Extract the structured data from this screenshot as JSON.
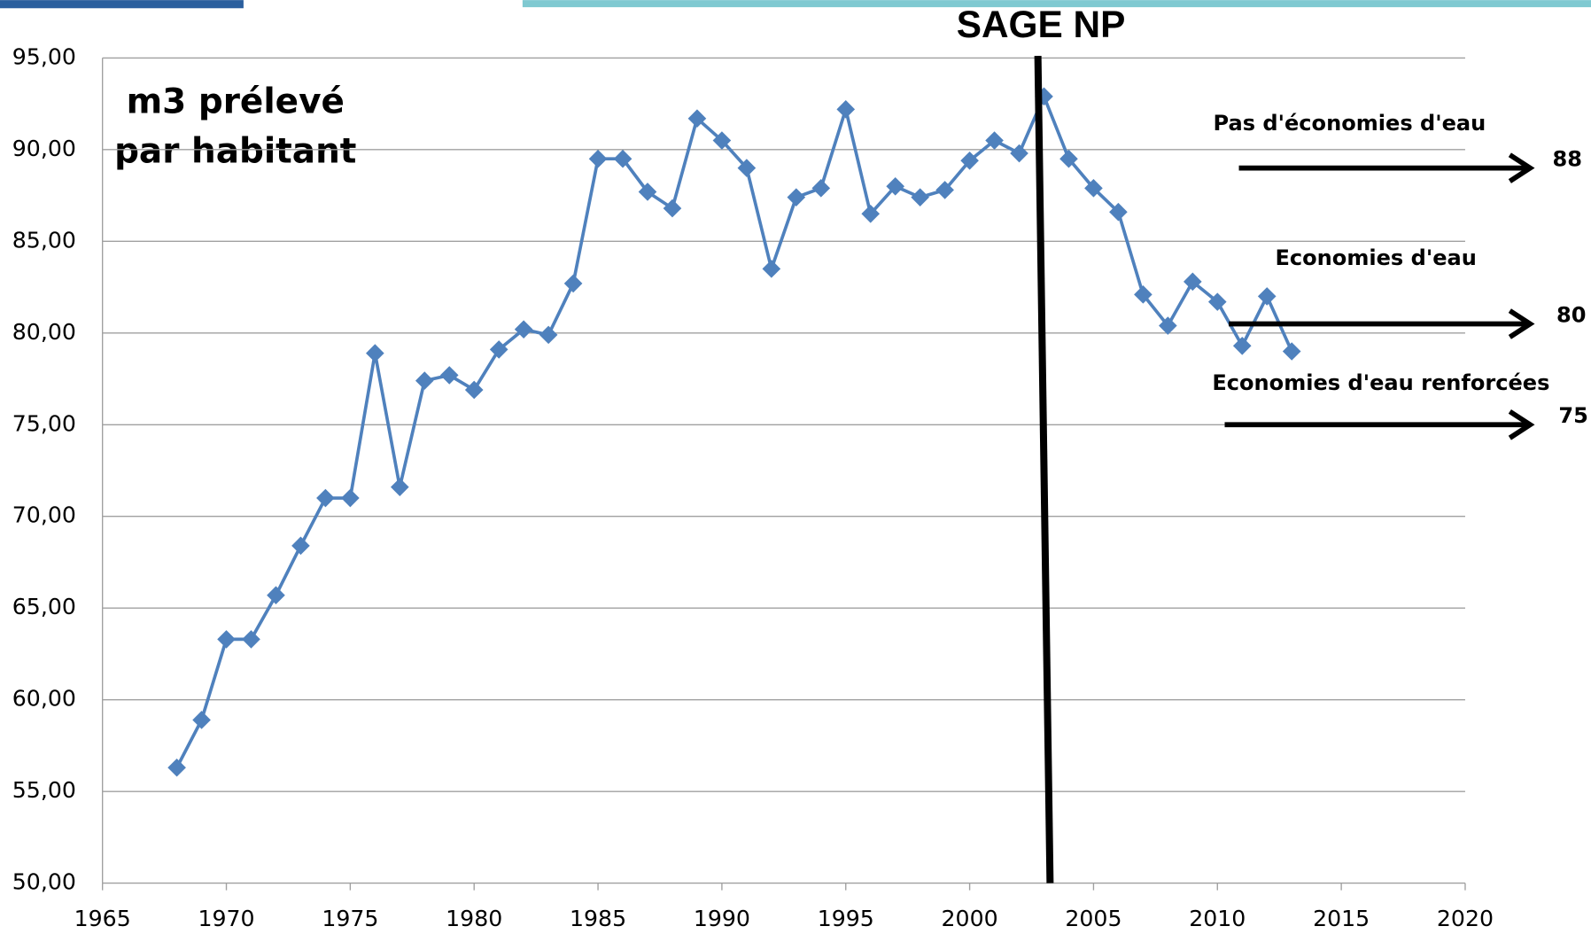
{
  "chart_data": {
    "type": "line",
    "title_lines": [
      "m3 prélevé",
      "par habitant"
    ],
    "x": [
      1968,
      1969,
      1970,
      1971,
      1972,
      1973,
      1974,
      1975,
      1976,
      1977,
      1978,
      1979,
      1980,
      1981,
      1982,
      1983,
      1984,
      1985,
      1986,
      1987,
      1988,
      1989,
      1990,
      1991,
      1992,
      1993,
      1994,
      1995,
      1996,
      1997,
      1998,
      1999,
      2000,
      2001,
      2002,
      2003,
      2004,
      2005,
      2006,
      2007,
      2008,
      2009,
      2010,
      2011,
      2012,
      2013
    ],
    "series": [
      {
        "color": "#4f81bd",
        "values": [
          56.3,
          58.9,
          63.3,
          63.3,
          65.7,
          68.4,
          71.0,
          71.0,
          78.9,
          71.6,
          77.4,
          77.7,
          76.9,
          79.1,
          80.2,
          79.9,
          82.7,
          89.5,
          89.5,
          87.7,
          86.8,
          91.7,
          90.5,
          89.0,
          83.5,
          87.4,
          87.9,
          92.2,
          86.5,
          88.0,
          87.4,
          87.8,
          89.4,
          90.5,
          89.8,
          92.9,
          89.5,
          87.9,
          86.6,
          82.1,
          80.4,
          82.8,
          81.7,
          79.3,
          82.0,
          79.0
        ]
      }
    ],
    "xlim": [
      1965,
      2020
    ],
    "xticks": [
      1965,
      1970,
      1975,
      1980,
      1985,
      1990,
      1995,
      2000,
      2005,
      2010,
      2015,
      2020
    ],
    "ylim": [
      50,
      95
    ],
    "yticks": [
      {
        "value": 50,
        "label": "50,00"
      },
      {
        "value": 55,
        "label": "55,00"
      },
      {
        "value": 60,
        "label": "60,00"
      },
      {
        "value": 65,
        "label": "65,00"
      },
      {
        "value": 70,
        "label": "70,00"
      },
      {
        "value": 75,
        "label": "75,00"
      },
      {
        "value": 80,
        "label": "80,00"
      },
      {
        "value": 85,
        "label": "85,00"
      },
      {
        "value": 90,
        "label": "90,00"
      },
      {
        "value": 95,
        "label": "95,00"
      }
    ],
    "grid": true,
    "vline": {
      "label": "SAGE NP",
      "x": 2003
    },
    "annotations": [
      {
        "text": "Pas d'économies d'eau",
        "value": 88
      },
      {
        "text": "Economies d'eau",
        "value": 80
      },
      {
        "text": "Economies d'eau renforcées",
        "value": 75
      }
    ]
  }
}
